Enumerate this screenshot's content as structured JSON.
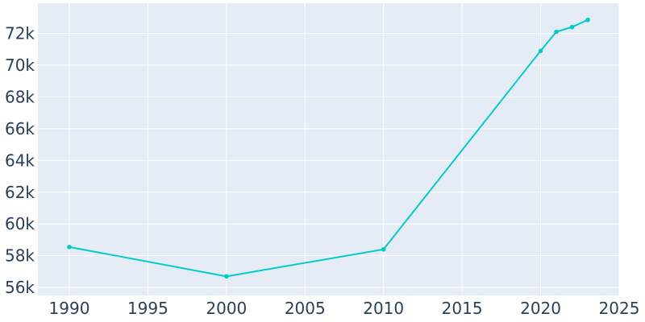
{
  "chart_data": {
    "type": "line",
    "title": "",
    "xlabel": "",
    "ylabel": "",
    "xlim": [
      1988,
      2025
    ],
    "ylim": [
      55500,
      73900
    ],
    "x_ticks": [
      1990,
      1995,
      2000,
      2005,
      2010,
      2015,
      2020,
      2025
    ],
    "x_tick_labels": [
      "1990",
      "1995",
      "2000",
      "2005",
      "2010",
      "2015",
      "2020",
      "2025"
    ],
    "y_ticks": [
      56000,
      58000,
      60000,
      62000,
      64000,
      66000,
      68000,
      70000,
      72000
    ],
    "y_tick_labels": [
      "56k",
      "58k",
      "60k",
      "62k",
      "64k",
      "66k",
      "68k",
      "70k",
      "72k"
    ],
    "grid": true,
    "legend": "none",
    "series": [
      {
        "color": "#00cccc",
        "x": [
          1990,
          2000,
          2010,
          2020,
          2021,
          2022,
          2023
        ],
        "y": [
          58550,
          56700,
          58400,
          70900,
          72100,
          72400,
          72850
        ]
      }
    ]
  },
  "colors": {
    "plot_background": "#e5ecf6",
    "grid": "#ffffff",
    "tick_text": "#2a3f5f",
    "line": "#00cccc"
  }
}
